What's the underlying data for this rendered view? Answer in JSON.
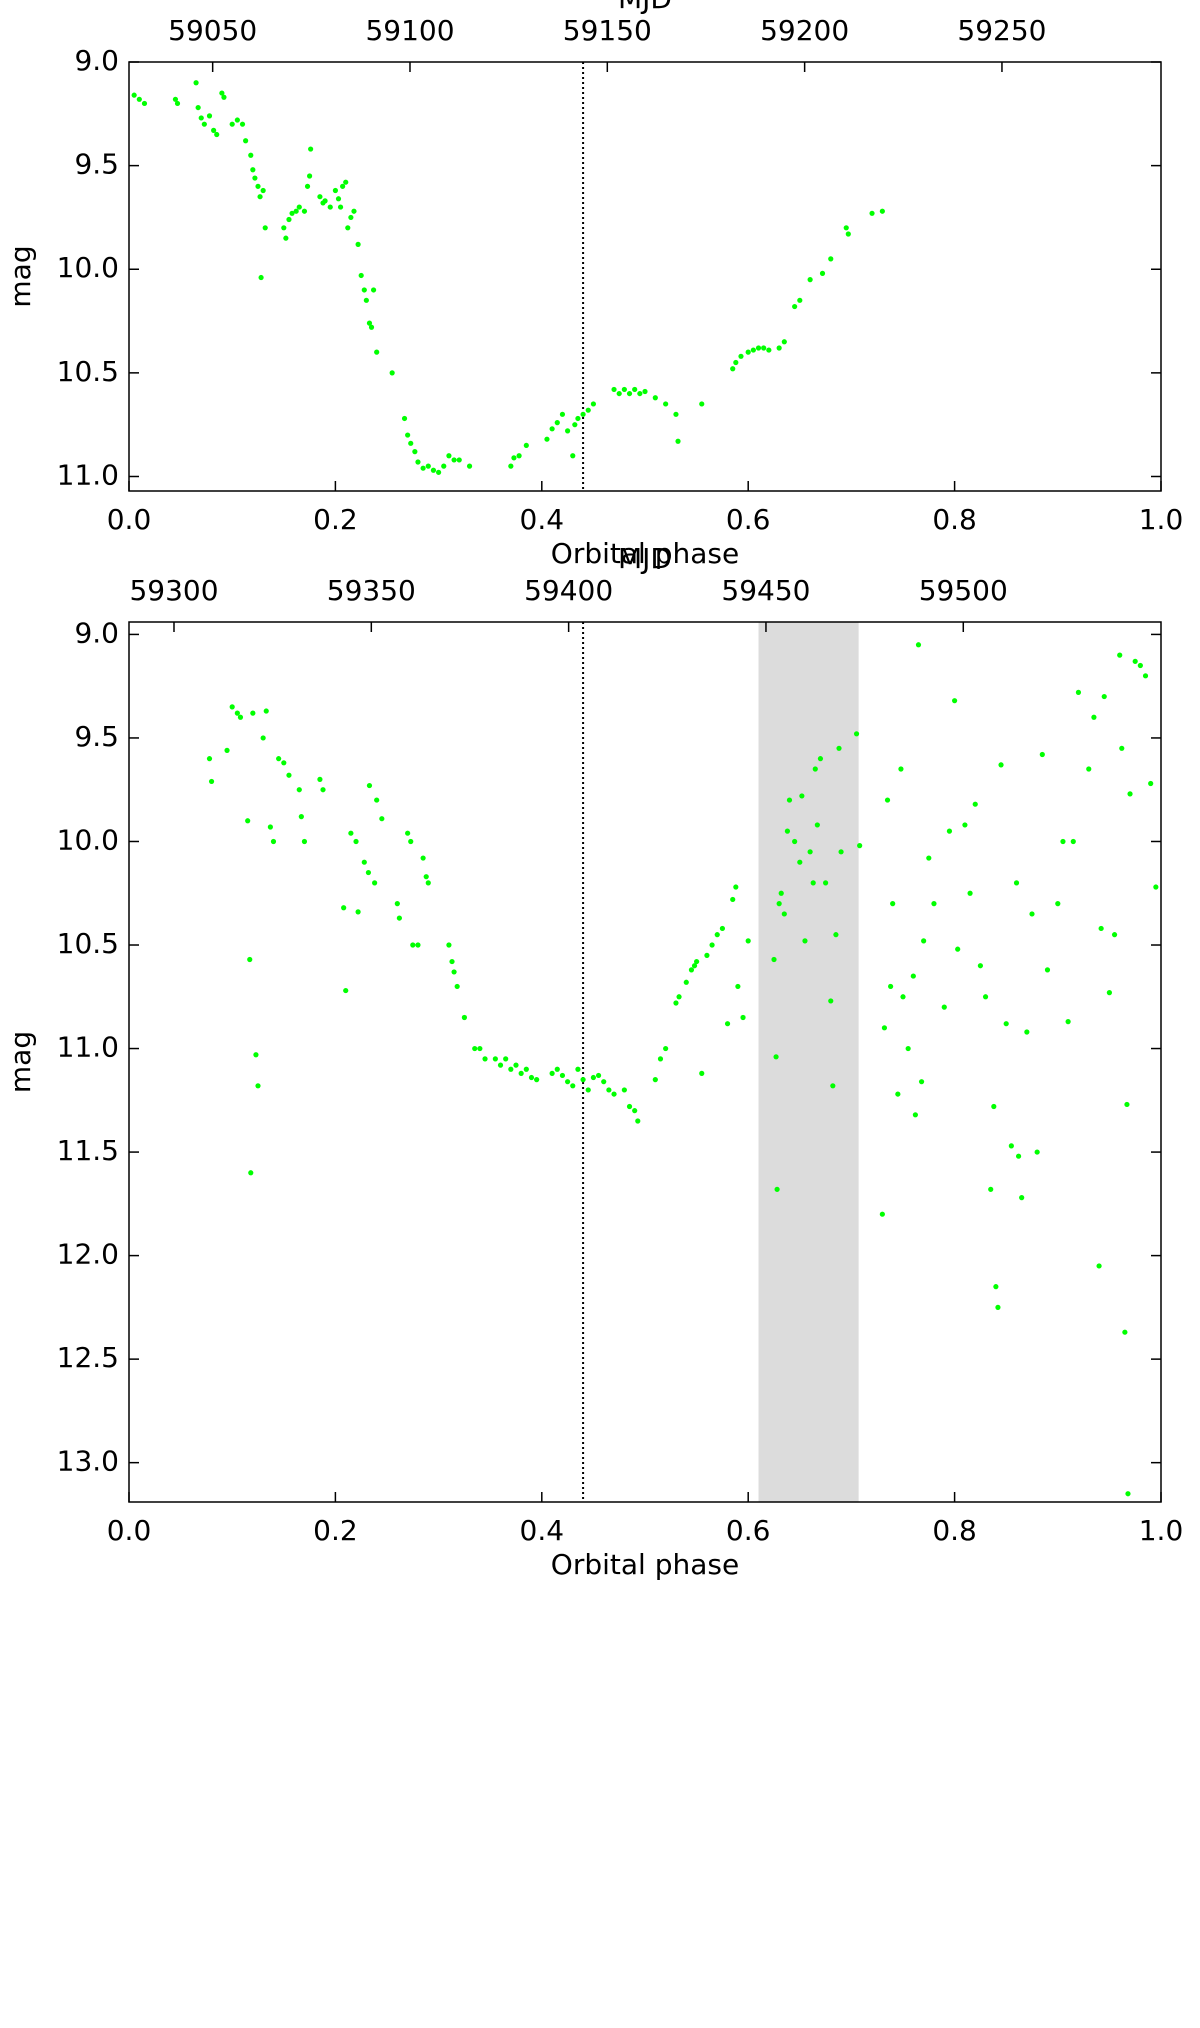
{
  "chart_data": [
    {
      "type": "scatter",
      "xlabel": "Orbital phase",
      "ylabel": "mag",
      "x2label": "MJD",
      "color": "#00ff00",
      "xlim": [
        0,
        1
      ],
      "xticks": [
        {
          "value": 0,
          "label": "0.0"
        },
        0.2,
        0.4,
        0.6,
        0.8,
        {
          "value": 1,
          "label": "1.0"
        }
      ],
      "ylim": [
        9.0,
        11.07
      ],
      "yinverted": true,
      "yticks": [
        {
          "value": 9,
          "label": "9.0"
        },
        9.5,
        {
          "value": 10,
          "label": "10.0"
        },
        10.5,
        {
          "value": 11,
          "label": "11.0"
        }
      ],
      "x2lim": [
        59028.8,
        59290.3
      ],
      "x2ticks": [
        59050,
        59100,
        59150,
        59200,
        59250
      ],
      "vline": 0.44,
      "x": [
        0.005,
        0.01,
        0.015,
        0.045,
        0.047,
        0.065,
        0.067,
        0.07,
        0.073,
        0.078,
        0.082,
        0.085,
        0.09,
        0.092,
        0.1,
        0.105,
        0.11,
        0.113,
        0.118,
        0.12,
        0.122,
        0.125,
        0.127,
        0.13,
        0.128,
        0.132,
        0.15,
        0.152,
        0.155,
        0.158,
        0.162,
        0.165,
        0.17,
        0.173,
        0.175,
        0.176,
        0.185,
        0.188,
        0.19,
        0.195,
        0.2,
        0.203,
        0.205,
        0.207,
        0.21,
        0.212,
        0.215,
        0.218,
        0.222,
        0.225,
        0.228,
        0.23,
        0.233,
        0.235,
        0.237,
        0.24,
        0.255,
        0.267,
        0.27,
        0.273,
        0.277,
        0.28,
        0.285,
        0.29,
        0.295,
        0.3,
        0.305,
        0.31,
        0.315,
        0.32,
        0.33,
        0.37,
        0.373,
        0.378,
        0.385,
        0.405,
        0.41,
        0.415,
        0.42,
        0.425,
        0.43,
        0.432,
        0.435,
        0.44,
        0.445,
        0.45,
        0.47,
        0.475,
        0.48,
        0.485,
        0.49,
        0.495,
        0.5,
        0.51,
        0.52,
        0.53,
        0.532,
        0.555,
        0.585,
        0.588,
        0.593,
        0.6,
        0.605,
        0.61,
        0.615,
        0.62,
        0.63,
        0.635,
        0.645,
        0.65,
        0.66,
        0.672,
        0.68,
        0.695,
        0.697,
        0.72,
        0.73
      ],
      "values": [
        9.16,
        9.18,
        9.2,
        9.18,
        9.2,
        9.1,
        9.22,
        9.27,
        9.3,
        9.26,
        9.33,
        9.35,
        9.15,
        9.17,
        9.3,
        9.28,
        9.3,
        9.38,
        9.45,
        9.52,
        9.56,
        9.6,
        9.65,
        9.62,
        10.04,
        9.8,
        9.8,
        9.85,
        9.76,
        9.73,
        9.72,
        9.7,
        9.72,
        9.6,
        9.55,
        9.42,
        9.65,
        9.68,
        9.67,
        9.7,
        9.62,
        9.66,
        9.7,
        9.6,
        9.58,
        9.8,
        9.75,
        9.72,
        9.88,
        10.03,
        10.1,
        10.15,
        10.26,
        10.28,
        10.1,
        10.4,
        10.5,
        10.72,
        10.8,
        10.84,
        10.88,
        10.93,
        10.96,
        10.95,
        10.97,
        10.98,
        10.95,
        10.9,
        10.92,
        10.92,
        10.95,
        10.95,
        10.91,
        10.9,
        10.85,
        10.82,
        10.77,
        10.74,
        10.7,
        10.78,
        10.9,
        10.75,
        10.72,
        10.7,
        10.68,
        10.65,
        10.58,
        10.6,
        10.58,
        10.6,
        10.58,
        10.6,
        10.59,
        10.62,
        10.65,
        10.7,
        10.83,
        10.65,
        10.48,
        10.45,
        10.42,
        10.4,
        10.39,
        10.38,
        10.38,
        10.39,
        10.38,
        10.35,
        10.18,
        10.15,
        10.05,
        10.02,
        9.95,
        9.8,
        9.83,
        9.73,
        9.72
      ]
    },
    {
      "type": "scatter",
      "xlabel": "Orbital phase",
      "ylabel": "mag",
      "x2label": "MJD",
      "color": "#00ff00",
      "xlim": [
        0,
        1
      ],
      "xticks": [
        {
          "value": 0,
          "label": "0.0"
        },
        0.2,
        0.4,
        0.6,
        0.8,
        {
          "value": 1,
          "label": "1.0"
        }
      ],
      "ylim": [
        8.94,
        13.19
      ],
      "yinverted": true,
      "yticks": [
        {
          "value": 9,
          "label": "9.0"
        },
        9.5,
        {
          "value": 10,
          "label": "10.0"
        },
        10.5,
        {
          "value": 11,
          "label": "11.0"
        },
        11.5,
        {
          "value": 12,
          "label": "12.0"
        },
        12.5,
        {
          "value": 13,
          "label": "13.0"
        }
      ],
      "x2lim": [
        59288.6,
        59550.1
      ],
      "x2ticks": [
        59300,
        59350,
        59400,
        59450,
        59500
      ],
      "vline": 0.44,
      "shaded_span": [
        0.61,
        0.707
      ],
      "x": [
        0.078,
        0.08,
        0.095,
        0.1,
        0.105,
        0.108,
        0.115,
        0.117,
        0.118,
        0.12,
        0.123,
        0.125,
        0.13,
        0.133,
        0.137,
        0.14,
        0.145,
        0.15,
        0.155,
        0.165,
        0.167,
        0.17,
        0.185,
        0.188,
        0.208,
        0.21,
        0.215,
        0.22,
        0.222,
        0.228,
        0.232,
        0.233,
        0.238,
        0.24,
        0.245,
        0.26,
        0.262,
        0.27,
        0.273,
        0.275,
        0.28,
        0.285,
        0.288,
        0.29,
        0.31,
        0.313,
        0.315,
        0.318,
        0.325,
        0.335,
        0.34,
        0.345,
        0.355,
        0.36,
        0.365,
        0.37,
        0.375,
        0.38,
        0.385,
        0.39,
        0.395,
        0.41,
        0.415,
        0.42,
        0.425,
        0.43,
        0.435,
        0.44,
        0.445,
        0.45,
        0.455,
        0.46,
        0.465,
        0.47,
        0.48,
        0.485,
        0.49,
        0.493,
        0.51,
        0.515,
        0.52,
        0.53,
        0.533,
        0.54,
        0.545,
        0.548,
        0.55,
        0.555,
        0.56,
        0.565,
        0.57,
        0.575,
        0.58,
        0.585,
        0.588,
        0.59,
        0.595,
        0.6,
        0.625,
        0.627,
        0.628,
        0.63,
        0.632,
        0.635,
        0.638,
        0.64,
        0.645,
        0.65,
        0.652,
        0.655,
        0.66,
        0.663,
        0.665,
        0.667,
        0.67,
        0.675,
        0.68,
        0.682,
        0.685,
        0.688,
        0.69,
        0.705,
        0.708,
        0.73,
        0.732,
        0.735,
        0.738,
        0.74,
        0.745,
        0.748,
        0.75,
        0.755,
        0.76,
        0.762,
        0.765,
        0.768,
        0.77,
        0.775,
        0.78,
        0.79,
        0.795,
        0.8,
        0.803,
        0.81,
        0.815,
        0.82,
        0.825,
        0.83,
        0.835,
        0.838,
        0.84,
        0.842,
        0.845,
        0.85,
        0.855,
        0.86,
        0.862,
        0.865,
        0.87,
        0.875,
        0.88,
        0.885,
        0.89,
        0.9,
        0.905,
        0.91,
        0.915,
        0.92,
        0.93,
        0.935,
        0.94,
        0.942,
        0.945,
        0.95,
        0.955,
        0.96,
        0.962,
        0.965,
        0.967,
        0.968,
        0.97,
        0.975,
        0.98,
        0.985,
        0.99,
        0.995
      ],
      "values": [
        9.6,
        9.71,
        9.56,
        9.35,
        9.38,
        9.4,
        9.9,
        10.57,
        11.6,
        9.38,
        11.03,
        11.18,
        9.5,
        9.37,
        9.93,
        10.0,
        9.6,
        9.62,
        9.68,
        9.75,
        9.88,
        10.0,
        9.7,
        9.75,
        10.32,
        10.72,
        9.96,
        10.0,
        10.34,
        10.1,
        10.15,
        9.73,
        10.2,
        9.8,
        9.89,
        10.3,
        10.37,
        9.96,
        10.0,
        10.5,
        10.5,
        10.08,
        10.17,
        10.2,
        10.5,
        10.58,
        10.63,
        10.7,
        10.85,
        11.0,
        11.0,
        11.05,
        11.05,
        11.08,
        11.05,
        11.1,
        11.08,
        11.12,
        11.1,
        11.14,
        11.15,
        11.12,
        11.1,
        11.13,
        11.16,
        11.18,
        11.1,
        11.15,
        11.2,
        11.14,
        11.13,
        11.16,
        11.2,
        11.22,
        11.2,
        11.28,
        11.3,
        11.35,
        11.15,
        11.05,
        11.0,
        10.78,
        10.75,
        10.68,
        10.62,
        10.6,
        10.58,
        11.12,
        10.55,
        10.5,
        10.45,
        10.42,
        10.88,
        10.28,
        10.22,
        10.7,
        10.85,
        10.48,
        10.57,
        11.04,
        11.68,
        10.3,
        10.25,
        10.35,
        9.95,
        9.8,
        10.0,
        10.1,
        9.78,
        10.48,
        10.05,
        10.2,
        9.65,
        9.92,
        9.6,
        10.2,
        10.77,
        11.18,
        10.45,
        9.55,
        10.05,
        9.48,
        10.02,
        11.8,
        10.9,
        9.8,
        10.7,
        10.3,
        11.22,
        9.65,
        10.75,
        11.0,
        10.65,
        11.32,
        9.05,
        11.16,
        10.48,
        10.08,
        10.3,
        10.8,
        9.95,
        9.32,
        10.52,
        9.92,
        10.25,
        9.82,
        10.6,
        10.75,
        11.68,
        11.28,
        12.15,
        12.25,
        9.63,
        10.88,
        11.47,
        10.2,
        11.52,
        11.72,
        10.92,
        10.35,
        11.5,
        9.58,
        10.62,
        10.3,
        10.0,
        10.87,
        10.0,
        9.28,
        9.65,
        9.4,
        12.05,
        10.42,
        9.3,
        10.73,
        10.45,
        9.1,
        9.55,
        12.37,
        11.27,
        13.15,
        9.77,
        9.13,
        9.15,
        9.2,
        9.72,
        10.22
      ]
    }
  ]
}
